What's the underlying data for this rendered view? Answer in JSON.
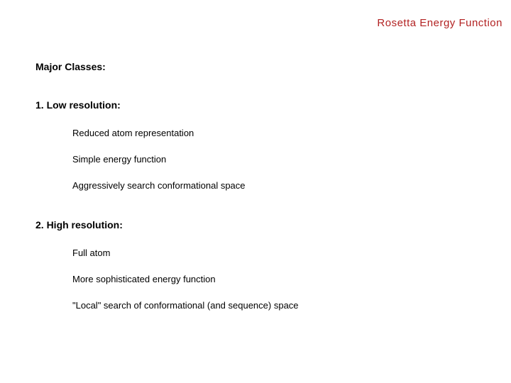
{
  "title": "Rosetta  Energy Function",
  "heading_main": "Major Classes:",
  "section1": {
    "heading": "1.  Low resolution:",
    "items": [
      "Reduced atom representation",
      "Simple energy function",
      "Aggressively search conformational space"
    ]
  },
  "section2": {
    "heading": "2. High resolution:",
    "items": [
      "Full atom",
      "More sophisticated energy function",
      "\"Local\" search of conformational (and sequence) space"
    ]
  },
  "colors": {
    "title_color": "#b22222",
    "text_color": "#000000",
    "background": "#ffffff"
  },
  "typography": {
    "title_fontsize": 15,
    "heading_fontsize": 14,
    "item_fontsize": 13,
    "font_family": "Arial"
  }
}
